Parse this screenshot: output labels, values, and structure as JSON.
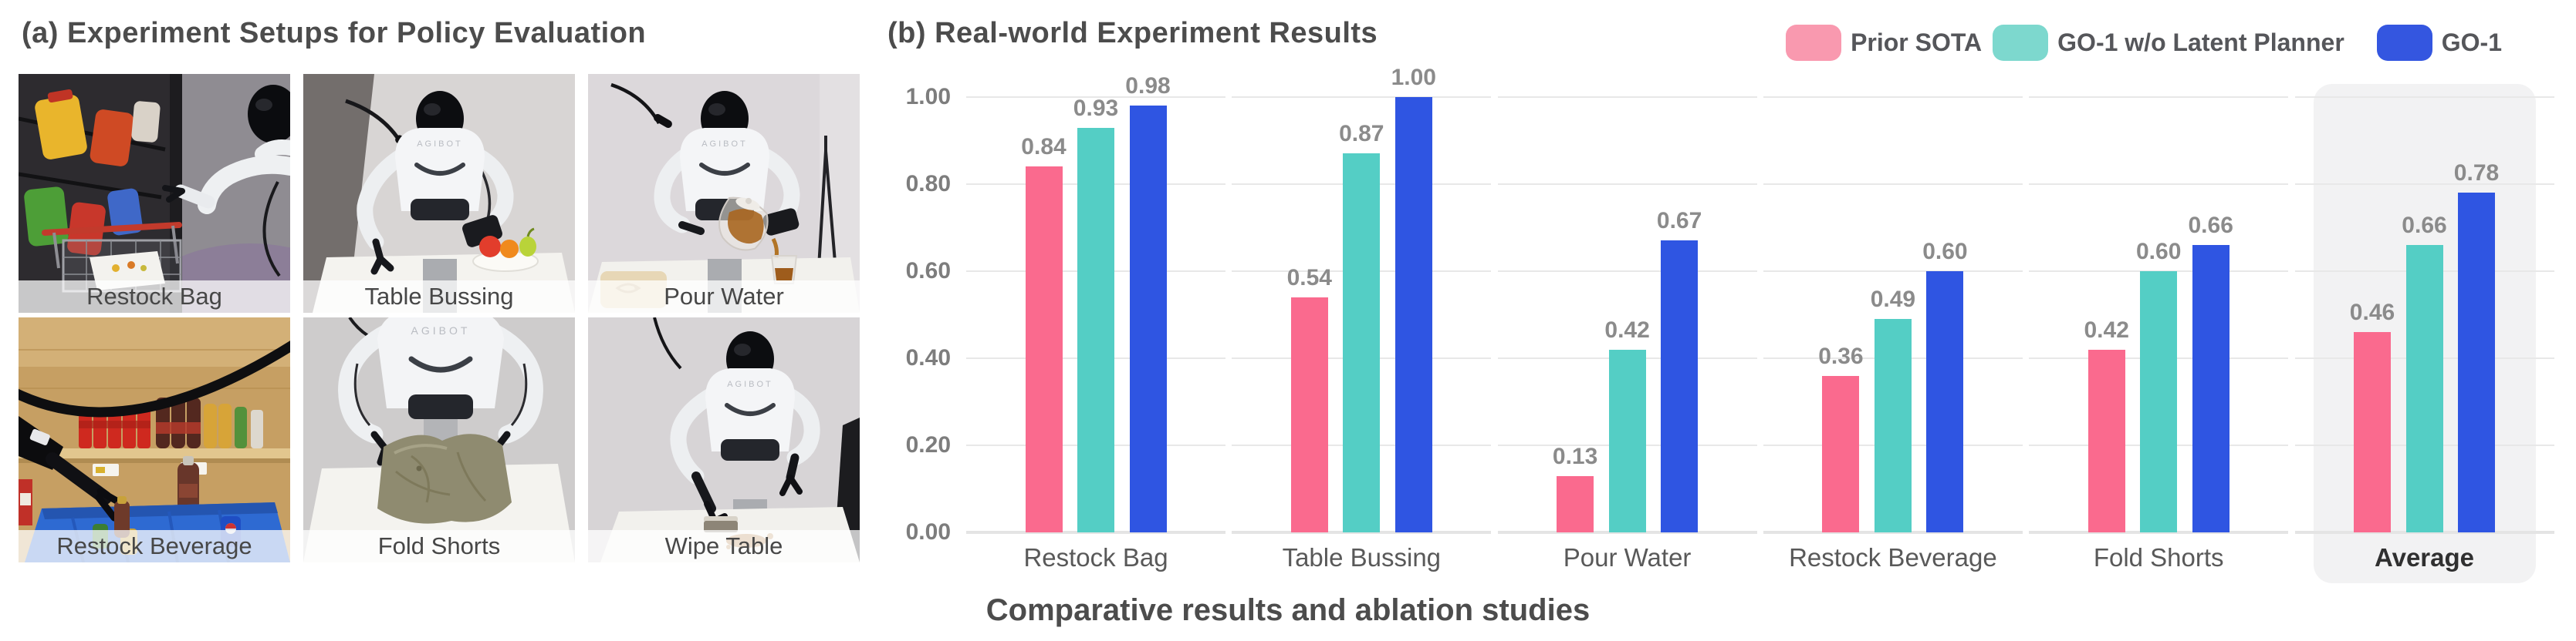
{
  "figure": {
    "panel_a_title": "(a) Experiment Setups for Policy Evaluation",
    "panel_b_title": "(b) Real-world Experiment Results",
    "caption": "Comparative results and ablation studies"
  },
  "setups": {
    "robot_brand": "AGIBOT",
    "photos": [
      {
        "label": "Restock Bag"
      },
      {
        "label": "Table Bussing"
      },
      {
        "label": "Pour Water"
      },
      {
        "label": "Restock Beverage"
      },
      {
        "label": "Fold Shorts"
      },
      {
        "label": "Wipe Table"
      }
    ]
  },
  "chart_data": {
    "type": "bar",
    "title": "(b) Real-world Experiment Results",
    "categories": [
      "Restock Bag",
      "Table Bussing",
      "Pour Water",
      "Restock Beverage",
      "Fold Shorts",
      "Average"
    ],
    "series": [
      {
        "name": "Prior SOTA",
        "color": "#FA6A8E",
        "legend_color": "#F999AF",
        "values": [
          0.84,
          0.54,
          0.13,
          0.36,
          0.42,
          0.46
        ]
      },
      {
        "name": "GO-1 w/o Latent Planner",
        "color": "#54CEC5",
        "legend_color": "#7DD8CE",
        "values": [
          0.93,
          0.87,
          0.42,
          0.49,
          0.6,
          0.66
        ]
      },
      {
        "name": "GO-1",
        "color": "#2F55E2",
        "legend_color": "#3456E0",
        "values": [
          0.98,
          1.0,
          0.67,
          0.6,
          0.66,
          0.78
        ]
      }
    ],
    "y_ticks": [
      "1.00",
      "0.80",
      "0.60",
      "0.40",
      "0.20",
      "0.00"
    ],
    "ylim": [
      0,
      1.0
    ],
    "value_label_format": "2-decimals",
    "highlighted_category": "Average",
    "legend_position": "top-right",
    "grid": true,
    "gridline_color": "#e8e8e8",
    "highlight_color": "#f2f2f3"
  }
}
